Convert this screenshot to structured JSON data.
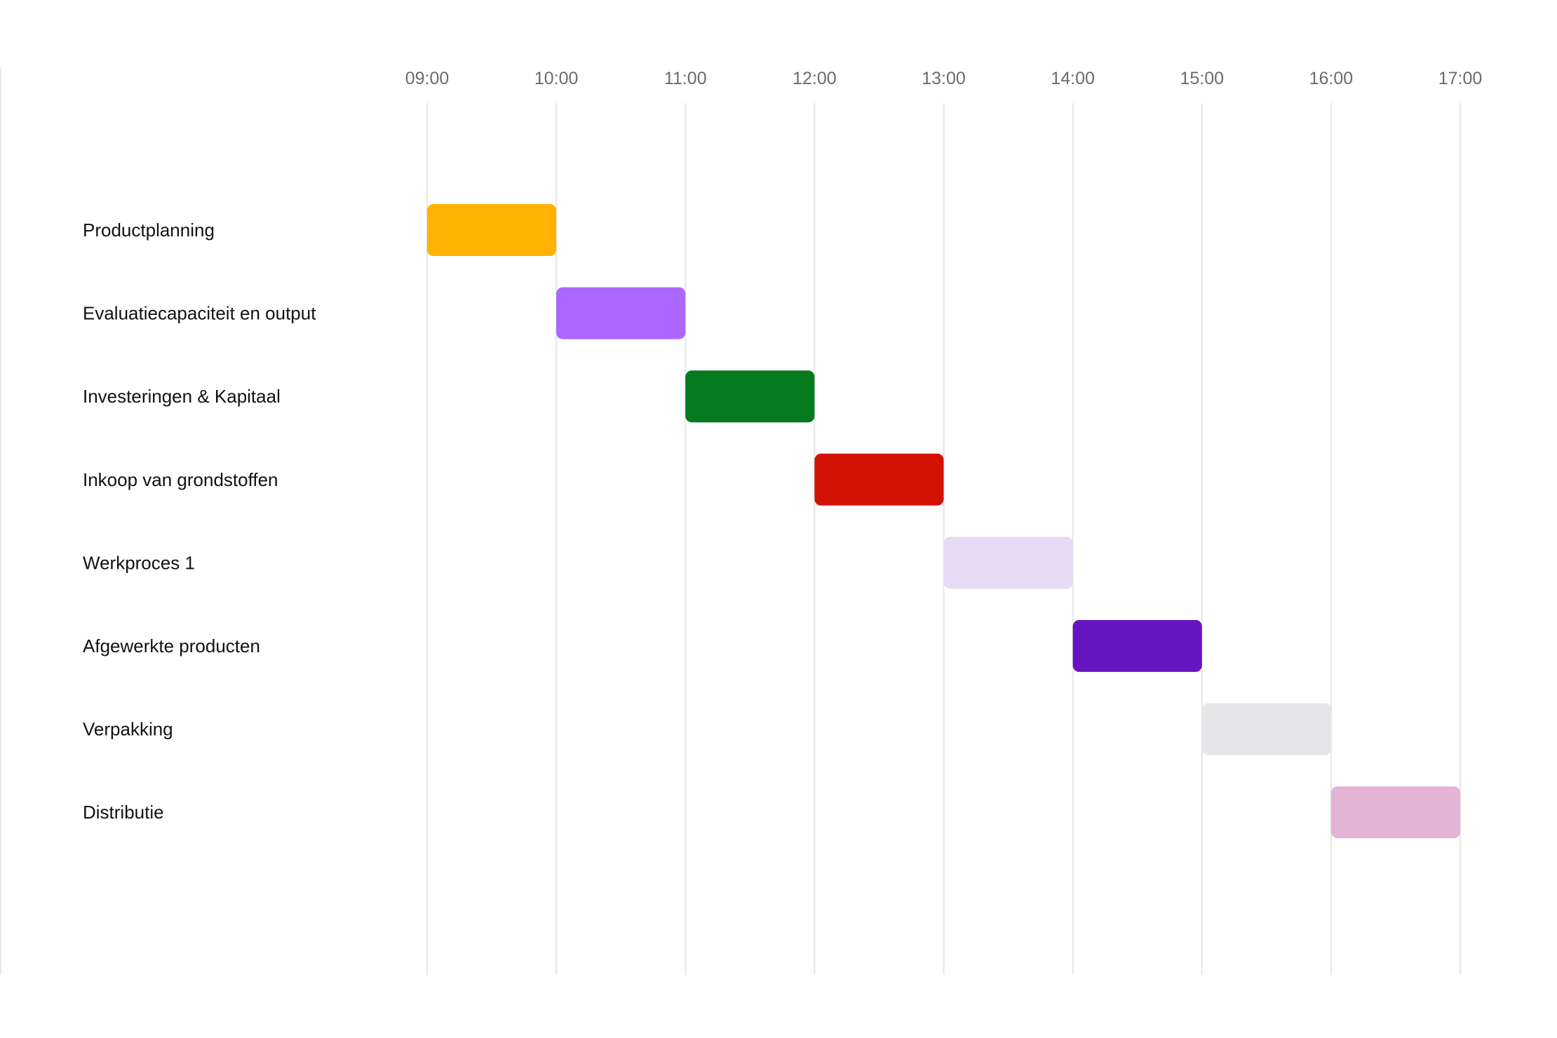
{
  "chart_data": {
    "type": "gantt",
    "title": "",
    "xlabel": "",
    "ylabel": "",
    "x_ticks": [
      "09:00",
      "10:00",
      "11:00",
      "12:00",
      "13:00",
      "14:00",
      "15:00",
      "16:00",
      "17:00"
    ],
    "x_range": [
      "09:00",
      "17:00"
    ],
    "grid": "vertical",
    "legend": "none",
    "tasks": [
      {
        "label": "Productplanning",
        "start": "09:00",
        "end": "10:00",
        "color": "#FFB300"
      },
      {
        "label": "Evaluatiecapaciteit en output",
        "start": "10:00",
        "end": "11:00",
        "color": "#AD66FE"
      },
      {
        "label": "Investeringen & Kapitaal",
        "start": "11:00",
        "end": "12:00",
        "color": "#067A1F"
      },
      {
        "label": "Inkoop van grondstoffen",
        "start": "12:00",
        "end": "13:00",
        "color": "#D41202"
      },
      {
        "label": "Werkproces 1",
        "start": "13:00",
        "end": "14:00",
        "color": "#E8D9F5"
      },
      {
        "label": "Afgewerkte producten",
        "start": "14:00",
        "end": "15:00",
        "color": "#6615BF"
      },
      {
        "label": "Verpakking",
        "start": "15:00",
        "end": "16:00",
        "color": "#E6E5E8"
      },
      {
        "label": "Distributie",
        "start": "16:00",
        "end": "17:00",
        "color": "#E4B4D7"
      }
    ]
  }
}
